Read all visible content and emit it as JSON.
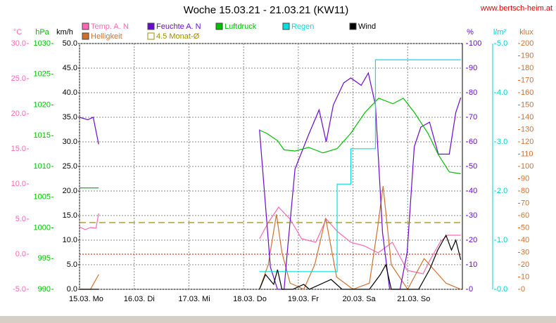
{
  "chart_data": {
    "type": "line",
    "title": "Woche 15.03.21 - 21.03.21 (KW11)",
    "source": "www.bertsch-heim.at",
    "xlim": [
      0,
      7
    ],
    "xticks": [
      {
        "value": 0,
        "label": "15.03.  Mo"
      },
      {
        "value": 1,
        "label": "16.03.  Di"
      },
      {
        "value": 2,
        "label": "17.03.  Mi"
      },
      {
        "value": 3,
        "label": "18.03.  Do"
      },
      {
        "value": 4,
        "label": "19.03.  Fr"
      },
      {
        "value": 5,
        "label": "20.03.  Sa"
      },
      {
        "value": 6,
        "label": "21.03.  So"
      }
    ],
    "grid": true,
    "ylabel": "km/h",
    "ycolor": "#000000",
    "ylim": [
      0,
      50
    ],
    "yticks": [
      {
        "value": 0,
        "label": "0.0"
      },
      {
        "value": 5,
        "label": "5.0"
      },
      {
        "value": 10,
        "label": "10.0"
      },
      {
        "value": 15,
        "label": "15.0"
      },
      {
        "value": 20,
        "label": "20.0"
      },
      {
        "value": 25,
        "label": "25.0"
      },
      {
        "value": 30,
        "label": "30.0"
      },
      {
        "value": 35,
        "label": "35.0"
      },
      {
        "value": 40,
        "label": "40.0"
      },
      {
        "value": 45,
        "label": "45.0"
      },
      {
        "value": 50,
        "label": "50.0"
      }
    ],
    "y2label": "%",
    "y2color": "#6a0ad0",
    "y2lim": [
      0,
      100
    ],
    "y2ticks": [
      0,
      10,
      20,
      30,
      40,
      50,
      60,
      70,
      80,
      90,
      100
    ],
    "y3label": "°C",
    "y3color": "#ff69b4",
    "y3lim": [
      -5,
      30
    ],
    "y3ticks": [
      {
        "value": -5,
        "label": "-5.0"
      },
      {
        "value": 0,
        "label": "0.0"
      },
      {
        "value": 5,
        "label": "5.0"
      },
      {
        "value": 10,
        "label": "10.0"
      },
      {
        "value": 15,
        "label": "15.0"
      },
      {
        "value": 20,
        "label": "20.0"
      },
      {
        "value": 25,
        "label": "25.0"
      },
      {
        "value": 30,
        "label": "30.0"
      }
    ],
    "y4label": "hPa",
    "y4color": "#00c000",
    "y4lim": [
      990,
      1030
    ],
    "y4ticks": [
      990,
      995,
      1000,
      1005,
      1010,
      1015,
      1020,
      1025,
      1030
    ],
    "y5label": "l/m²",
    "y5color": "#00d0d0",
    "y5lim": [
      0,
      5
    ],
    "y5ticks": [
      {
        "value": 0,
        "label": "0.0"
      },
      {
        "value": 1,
        "label": "1.0"
      },
      {
        "value": 2,
        "label": "2.0"
      },
      {
        "value": 3,
        "label": "3.0"
      },
      {
        "value": 4,
        "label": "4.0"
      },
      {
        "value": 5,
        "label": "5.0"
      }
    ],
    "y6label": "klux",
    "y6color": "#d07030",
    "y6lim": [
      0,
      200
    ],
    "y6ticks": [
      0,
      10,
      20,
      30,
      40,
      50,
      60,
      70,
      80,
      90,
      100,
      110,
      120,
      130,
      140,
      150,
      160,
      170,
      180,
      190,
      200
    ],
    "reference_lines": [
      {
        "axis": "y3",
        "value": 0,
        "color": "#e00000"
      }
    ],
    "series": [
      {
        "name": "Temp. A. N",
        "color": "#ff69b4",
        "axis": "y3",
        "x": [
          0,
          0.1,
          0.2,
          0.3,
          0.35,
          1,
          3.29,
          3.45,
          3.64,
          3.85,
          4.06,
          4.32,
          4.51,
          4.72,
          4.96,
          5.2,
          5.46,
          5.72,
          5.99,
          6.28,
          6.41,
          6.6,
          6.73,
          6.97
        ],
        "values": [
          3.9,
          3.5,
          3.8,
          3.7,
          5.8,
          null,
          2.2,
          4.5,
          6.7,
          5.0,
          2.2,
          1.7,
          5.0,
          3.2,
          1.7,
          1.2,
          0.2,
          1.7,
          -2.3,
          -2.8,
          -0.8,
          1.8,
          2.7,
          2.7
        ]
      },
      {
        "name": "Helligkeit",
        "color": "#d07030",
        "axis": "y6",
        "x": [
          0,
          0.2,
          0.35,
          1,
          3.29,
          3.45,
          3.6,
          3.7,
          3.85,
          4.1,
          4.3,
          4.5,
          4.7,
          5.0,
          5.3,
          5.45,
          5.55,
          5.7,
          6.0,
          6.3,
          6.5,
          6.7,
          6.97
        ],
        "values": [
          0,
          0,
          12,
          null,
          0,
          20,
          61,
          30,
          5,
          0,
          20,
          58,
          10,
          0,
          5,
          50,
          84,
          20,
          0,
          25,
          15,
          5,
          0
        ]
      },
      {
        "name": "Feuchte A. N",
        "color": "#6a0ad0",
        "axis": "y2",
        "x": [
          0,
          0.15,
          0.25,
          0.35,
          1,
          3.29,
          3.49,
          3.62,
          3.74,
          3.81,
          3.94,
          4.19,
          4.38,
          4.51,
          4.64,
          4.83,
          4.96,
          5.15,
          5.28,
          5.41,
          5.54,
          5.67,
          5.86,
          5.99,
          6.12,
          6.24,
          6.4,
          6.56,
          6.76,
          6.88,
          6.97
        ],
        "values": [
          70,
          69,
          70,
          59,
          null,
          65,
          9,
          0,
          0,
          18,
          49,
          63,
          73,
          60,
          75,
          84,
          86,
          83,
          88,
          75,
          23,
          0,
          0,
          15,
          58,
          66,
          68,
          55,
          55,
          72,
          78
        ]
      },
      {
        "name": "4.5 Monat-Ø",
        "color": "#a08c00",
        "axis": "y3",
        "dashed": true,
        "x": [
          0,
          6.97
        ],
        "values": [
          4.5,
          4.5
        ]
      },
      {
        "name": "Luftdruck",
        "color": "#00c000",
        "axis": "y4",
        "x": [
          0,
          0.35,
          1,
          3.29,
          3.42,
          3.62,
          3.74,
          3.94,
          4.19,
          4.45,
          4.71,
          4.96,
          5.22,
          5.47,
          5.73,
          5.92,
          6.12,
          6.37,
          6.56,
          6.76,
          6.97
        ],
        "values": [
          1006.5,
          1006.5,
          null,
          1015.9,
          1015.4,
          1014.2,
          1012.7,
          1012.5,
          1013.1,
          1012.2,
          1012.9,
          1015.4,
          1018.8,
          1021.1,
          1020.2,
          1021.1,
          1018.8,
          1015.4,
          1011.9,
          1009.1,
          1008.8
        ]
      },
      {
        "name": "Regen",
        "color": "#00e0e0",
        "axis": "y5",
        "step": true,
        "x": [
          3.29,
          4.71,
          4.96,
          5.41,
          6.97
        ],
        "values": [
          0.36,
          2.14,
          2.86,
          4.67,
          4.67
        ]
      },
      {
        "name": "Wind",
        "color": "#000000",
        "axis": "y",
        "x": [
          0,
          0.35,
          1,
          3.29,
          3.4,
          3.55,
          3.62,
          3.7,
          3.9,
          4.1,
          4.2,
          4.6,
          4.8,
          5.3,
          5.5,
          5.6,
          5.7,
          5.9,
          6.2,
          6.4,
          6.55,
          6.7,
          6.8,
          6.88,
          6.97
        ],
        "values": [
          0,
          0,
          null,
          0,
          3,
          1,
          4,
          0,
          0,
          1,
          0,
          2,
          0,
          0,
          3,
          5,
          0,
          0,
          0,
          4,
          8,
          11,
          8,
          10,
          6
        ]
      }
    ]
  }
}
